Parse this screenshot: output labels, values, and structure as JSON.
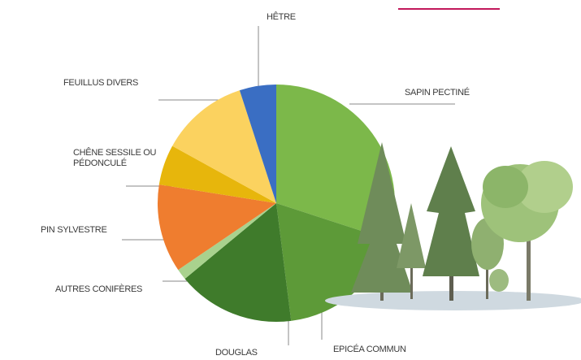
{
  "chart_data": {
    "type": "pie",
    "categories": [
      "SAPIN PECTINÉ",
      "EPICÉA COMMUN",
      "DOUGLAS",
      "AUTRES CONIFÈRES",
      "PIN SYLVESTRE",
      "CHÊNE SESSILE OU PÉDONCULÉ",
      "FEUILLUS DIVERS",
      "HÊTRE"
    ],
    "values": [
      30,
      18,
      16,
      1.5,
      12,
      5.5,
      12,
      5
    ],
    "colors": [
      "#7cb84a",
      "#5d9a38",
      "#3f7b2b",
      "#a9d28e",
      "#ef7d2f",
      "#e7b60c",
      "#fbd25f",
      "#3a6ec3"
    ]
  }
}
